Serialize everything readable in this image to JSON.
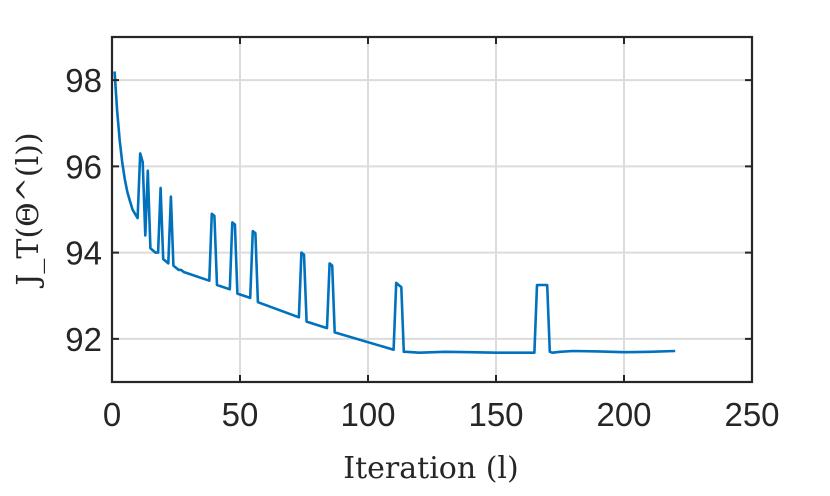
{
  "chart_data": {
    "type": "line",
    "xlabel": "Iteration (l)",
    "ylabel": "J_T(Θ^(l))",
    "xlim": [
      0,
      250
    ],
    "ylim": [
      91,
      99
    ],
    "xticks": [
      "0",
      "50",
      "100",
      "150",
      "200",
      "250"
    ],
    "yticks": [
      "92",
      "94",
      "96",
      "98"
    ],
    "xtick_values": [
      0,
      50,
      100,
      150,
      200,
      250
    ],
    "ytick_values": [
      92,
      94,
      96,
      98
    ],
    "grid": true,
    "series": [
      {
        "color": "#0072bd",
        "x": [
          1,
          2,
          3,
          4,
          5,
          6,
          7,
          8,
          9,
          10,
          11,
          12,
          13,
          14,
          15,
          16,
          17,
          18,
          19,
          20,
          21,
          22,
          23,
          24,
          25,
          26,
          27,
          28,
          38,
          39,
          40,
          41,
          46,
          47,
          48,
          49,
          54,
          55,
          56,
          57,
          73,
          74,
          75,
          76,
          84,
          85,
          86,
          87,
          110,
          111,
          112,
          113,
          114,
          115,
          120,
          130,
          140,
          150,
          160,
          165,
          166,
          167,
          168,
          169,
          170,
          171,
          172,
          175,
          180,
          190,
          200,
          210,
          220
        ],
        "y": [
          98.2,
          97.3,
          96.6,
          96.1,
          95.7,
          95.4,
          95.2,
          95.0,
          94.9,
          94.8,
          96.3,
          96.1,
          94.4,
          95.9,
          94.1,
          94.05,
          94.0,
          94.0,
          95.5,
          93.85,
          93.8,
          93.75,
          95.3,
          93.7,
          93.65,
          93.6,
          93.6,
          93.55,
          93.35,
          94.9,
          94.85,
          93.25,
          93.15,
          94.7,
          94.65,
          93.05,
          92.95,
          94.5,
          94.45,
          92.85,
          92.5,
          94.0,
          93.95,
          92.4,
          92.25,
          93.75,
          93.7,
          92.15,
          91.75,
          93.3,
          93.25,
          93.2,
          91.7,
          91.7,
          91.68,
          91.7,
          91.69,
          91.68,
          91.68,
          91.68,
          93.25,
          93.25,
          93.25,
          93.25,
          93.25,
          91.7,
          91.68,
          91.7,
          91.72,
          91.71,
          91.69,
          91.7,
          91.72
        ]
      }
    ]
  }
}
